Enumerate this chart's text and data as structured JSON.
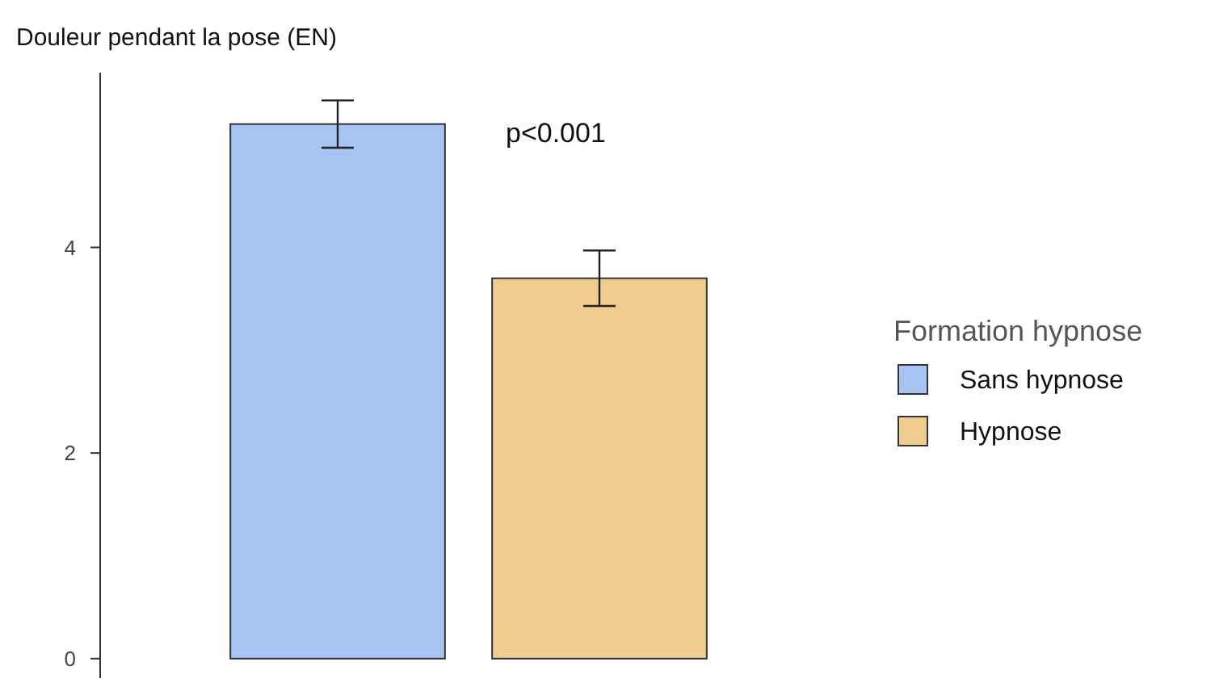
{
  "chart_data": {
    "type": "bar",
    "ylabel": "Douleur pendant la pose (EN)",
    "legend_title": "Formation hypnose",
    "categories": [
      null
    ],
    "series": [
      {
        "name": "Sans hypnose",
        "color": "#a7c4f2",
        "values": [
          5.2
        ],
        "errors": [
          0.23
        ]
      },
      {
        "name": "Hypnose",
        "color": "#f0cd8e",
        "values": [
          3.7
        ],
        "errors": [
          0.27
        ]
      }
    ],
    "ylim": [
      -0.19,
      5.7
    ],
    "yticks": [
      0,
      2,
      4
    ],
    "grid": false,
    "legend": "right",
    "annotations": [
      "p<0.001"
    ]
  }
}
